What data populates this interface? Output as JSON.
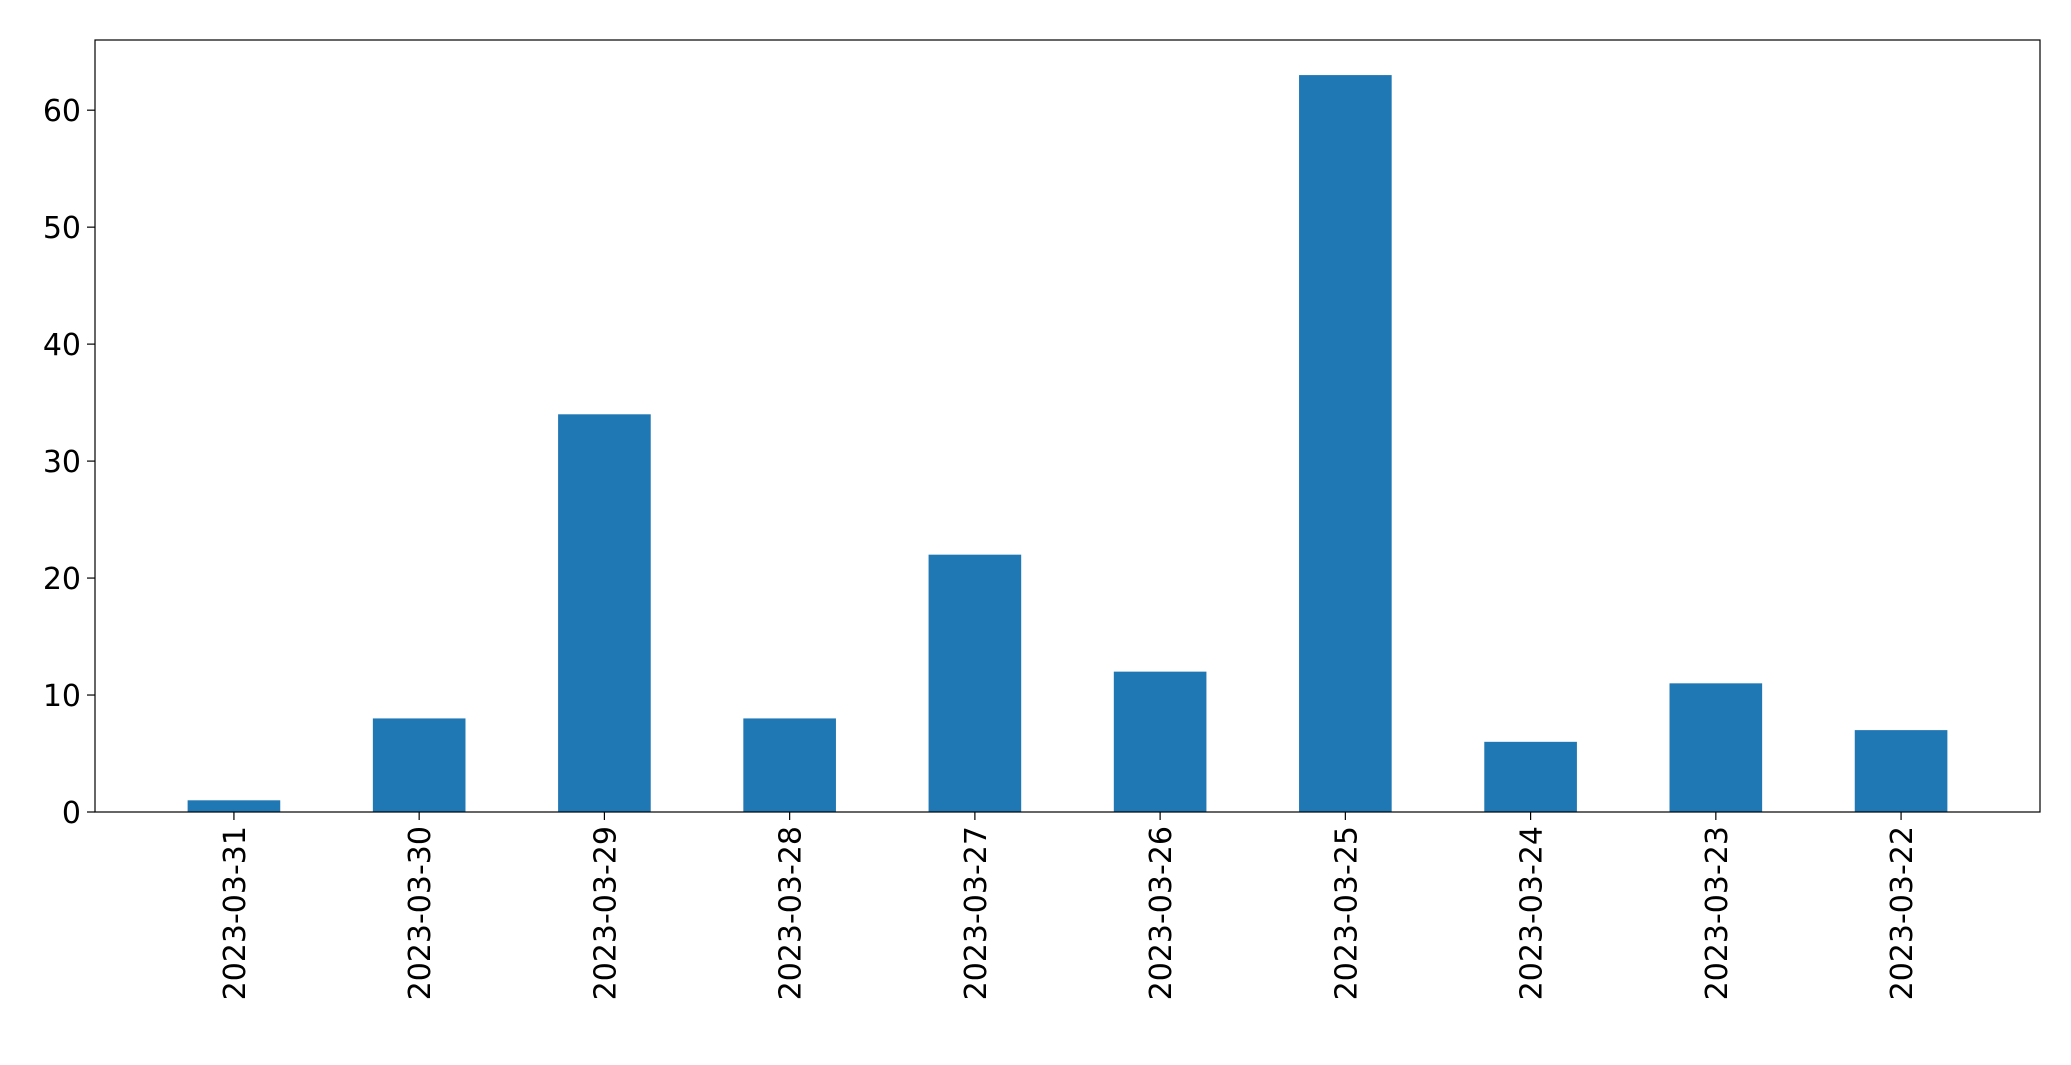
{
  "chart_data": {
    "type": "bar",
    "title": "",
    "xlabel": "",
    "ylabel": "",
    "categories": [
      "2023-03-31",
      "2023-03-30",
      "2023-03-29",
      "2023-03-28",
      "2023-03-27",
      "2023-03-26",
      "2023-03-25",
      "2023-03-24",
      "2023-03-23",
      "2023-03-22"
    ],
    "values": [
      1,
      8,
      34,
      8,
      22,
      12,
      63,
      6,
      11,
      7
    ],
    "ylim": [
      0,
      66
    ],
    "yticks": [
      0,
      10,
      20,
      30,
      40,
      50,
      60
    ],
    "bar_color": "#1f77b4",
    "grid": false,
    "legend": false
  }
}
